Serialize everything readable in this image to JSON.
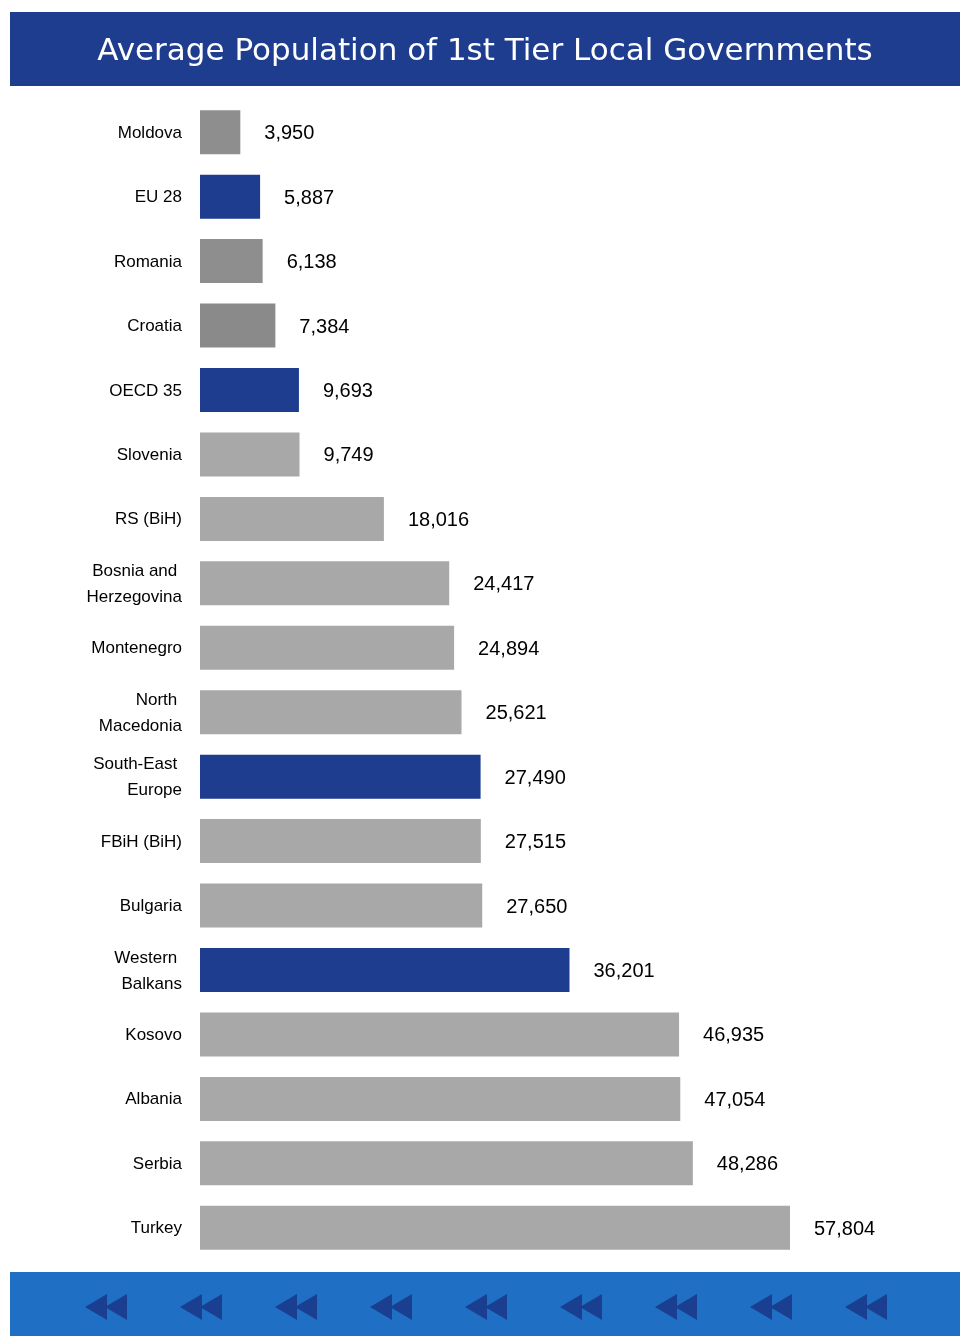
{
  "chart_data": {
    "type": "bar",
    "orientation": "horizontal",
    "title": "Average Population of 1st Tier Local Governments",
    "categories": [
      "Moldova",
      "EU 28",
      "Romania",
      "Croatia",
      "OECD 35",
      "Slovenia",
      "RS (BiH)",
      "Bosnia and Herzegovina",
      "Montenegro",
      "North Macedonia",
      "South-East Europe",
      "FBiH (BiH)",
      "Bulgaria",
      "Western Balkans",
      "Kosovo",
      "Albania",
      "Serbia",
      "Turkey"
    ],
    "values": [
      3950,
      5887,
      6138,
      7384,
      9693,
      9749,
      18016,
      24417,
      24894,
      25621,
      27490,
      27515,
      27650,
      36201,
      46935,
      47054,
      48286,
      57804
    ],
    "colors": [
      "#8e8e8e",
      "#1e3d8f",
      "#8e8e8e",
      "#8a8a8a",
      "#1e3d8f",
      "#a8a8a8",
      "#a8a8a8",
      "#a8a8a8",
      "#a8a8a8",
      "#a8a8a8",
      "#1e3d8f",
      "#a8a8a8",
      "#a8a8a8",
      "#1e3d8f",
      "#a8a8a8",
      "#a8a8a8",
      "#a8a8a8",
      "#a8a8a8"
    ],
    "value_labels": [
      "3,950",
      "5,887",
      "6,138",
      "7,384",
      "9,693",
      "9,749",
      "18,016",
      "24,417",
      "24,894",
      "25,621",
      "27,490",
      "27,515",
      "27,650",
      "36,201",
      "46,935",
      "47,054",
      "48,286",
      "57,804"
    ]
  }
}
